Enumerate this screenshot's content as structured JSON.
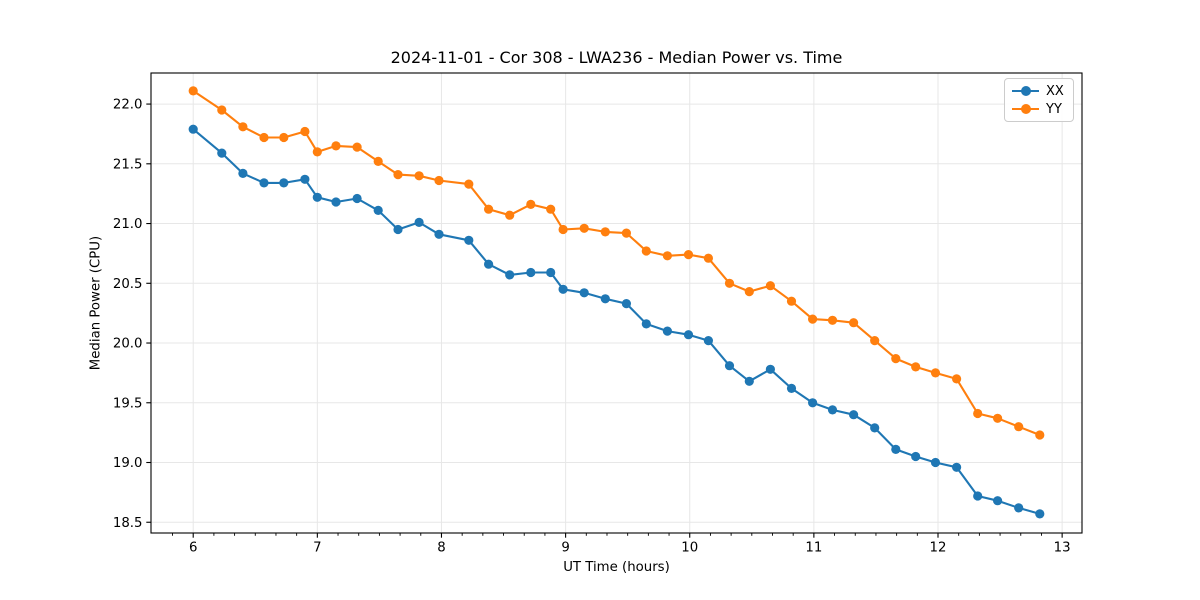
{
  "window": {
    "background": "#ffffff"
  },
  "chart_data": {
    "type": "line",
    "title": "2024-11-01 - Cor 308 - LWA236 - Median Power vs. Time",
    "xlabel": "UT Time (hours)",
    "ylabel": "Median Power (CPU)",
    "xlim": [
      5.66,
      13.16
    ],
    "ylim": [
      18.41,
      22.26
    ],
    "xticks": [
      6,
      7,
      8,
      9,
      10,
      11,
      12,
      13
    ],
    "xtick_labels": [
      "6",
      "7",
      "8",
      "9",
      "10",
      "11",
      "12",
      "13"
    ],
    "yticks": [
      18.5,
      19.0,
      19.5,
      20.0,
      20.5,
      21.0,
      21.5,
      22.0
    ],
    "ytick_labels": [
      "18.5",
      "19.0",
      "19.5",
      "20.0",
      "20.5",
      "21.0",
      "21.5",
      "22.0"
    ],
    "x_minor_tick_interval": 0.166667,
    "grid": "major-both",
    "grid_color": "#e7e7e7",
    "marker": "o",
    "legend_position": "upper right",
    "x": [
      6.0,
      6.23,
      6.4,
      6.57,
      6.73,
      6.9,
      7.0,
      7.15,
      7.32,
      7.49,
      7.65,
      7.82,
      7.98,
      8.22,
      8.38,
      8.55,
      8.72,
      8.88,
      8.98,
      9.15,
      9.32,
      9.49,
      9.65,
      9.82,
      9.99,
      10.15,
      10.32,
      10.48,
      10.65,
      10.82,
      10.99,
      11.15,
      11.32,
      11.49,
      11.66,
      11.82,
      11.98,
      12.15,
      12.32,
      12.48,
      12.65,
      12.82
    ],
    "series": [
      {
        "name": "XX",
        "color": "#1f77b4",
        "values": [
          21.79,
          21.59,
          21.42,
          21.34,
          21.34,
          21.37,
          21.22,
          21.18,
          21.21,
          21.11,
          20.95,
          21.01,
          20.91,
          20.86,
          20.66,
          20.57,
          20.59,
          20.59,
          20.45,
          20.42,
          20.37,
          20.33,
          20.16,
          20.1,
          20.07,
          20.02,
          19.81,
          19.68,
          19.78,
          19.62,
          19.5,
          19.44,
          19.4,
          19.29,
          19.11,
          19.05,
          19.0,
          18.96,
          18.72,
          18.68,
          18.62,
          18.57
        ]
      },
      {
        "name": "YY",
        "color": "#ff7f0e",
        "values": [
          22.11,
          21.95,
          21.81,
          21.72,
          21.72,
          21.77,
          21.6,
          21.65,
          21.64,
          21.52,
          21.41,
          21.4,
          21.36,
          21.33,
          21.12,
          21.07,
          21.16,
          21.12,
          20.95,
          20.96,
          20.93,
          20.92,
          20.77,
          20.73,
          20.74,
          20.71,
          20.5,
          20.43,
          20.48,
          20.35,
          20.2,
          20.19,
          20.17,
          20.02,
          19.87,
          19.8,
          19.75,
          19.7,
          19.41,
          19.37,
          19.3,
          19.23
        ]
      }
    ]
  }
}
